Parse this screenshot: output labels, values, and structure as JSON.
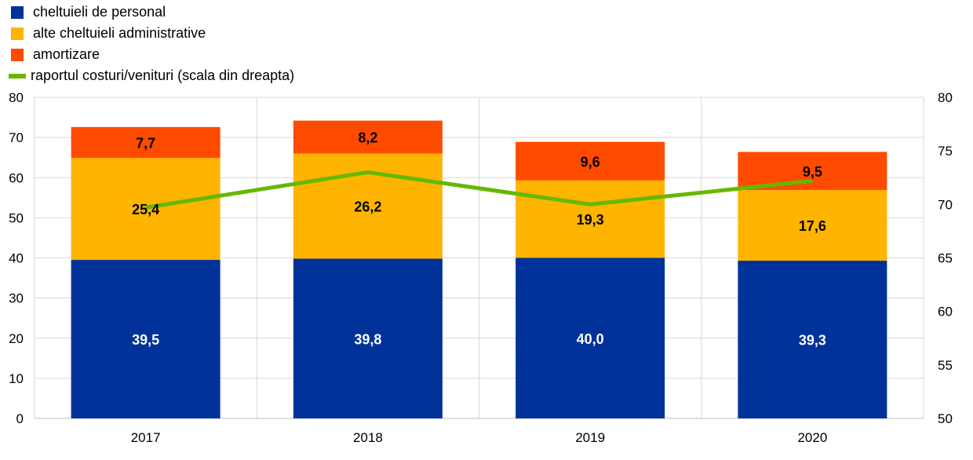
{
  "chart_data": {
    "type": "bar",
    "stacked": true,
    "categories": [
      "2017",
      "2018",
      "2019",
      "2020"
    ],
    "series": [
      {
        "name": "cheltuieli de personal",
        "values": [
          39.5,
          39.8,
          40.0,
          39.3
        ],
        "labels": [
          "39,5",
          "39,8",
          "40,0",
          "39,3"
        ],
        "color": "#003299"
      },
      {
        "name": "alte cheltuieli administrative",
        "values": [
          25.4,
          26.2,
          19.3,
          17.6
        ],
        "labels": [
          "25,4",
          "26,2",
          "19,3",
          "17,6"
        ],
        "color": "#FFB400"
      },
      {
        "name": "amortizare",
        "values": [
          7.7,
          8.2,
          9.6,
          9.5
        ],
        "labels": [
          "7,7",
          "8,2",
          "9,6",
          "9,5"
        ],
        "color": "#FF4B00"
      }
    ],
    "line_series": {
      "name": "raportul costuri/venituri (scala din dreapta)",
      "values": [
        69.7,
        73.0,
        70.0,
        72.2
      ],
      "color": "#65B800",
      "axis": "right"
    },
    "y_left": {
      "lim": [
        0,
        80
      ],
      "ticks": [
        "0",
        "10",
        "20",
        "30",
        "40",
        "50",
        "60",
        "70",
        "80"
      ]
    },
    "y_right": {
      "lim": [
        50,
        80
      ],
      "ticks": [
        "50",
        "55",
        "60",
        "65",
        "70",
        "75",
        "80"
      ]
    },
    "grid": "horizontal-and-vertical",
    "legend": "top-left",
    "title": "",
    "xlabel": "",
    "ylabel": ""
  }
}
